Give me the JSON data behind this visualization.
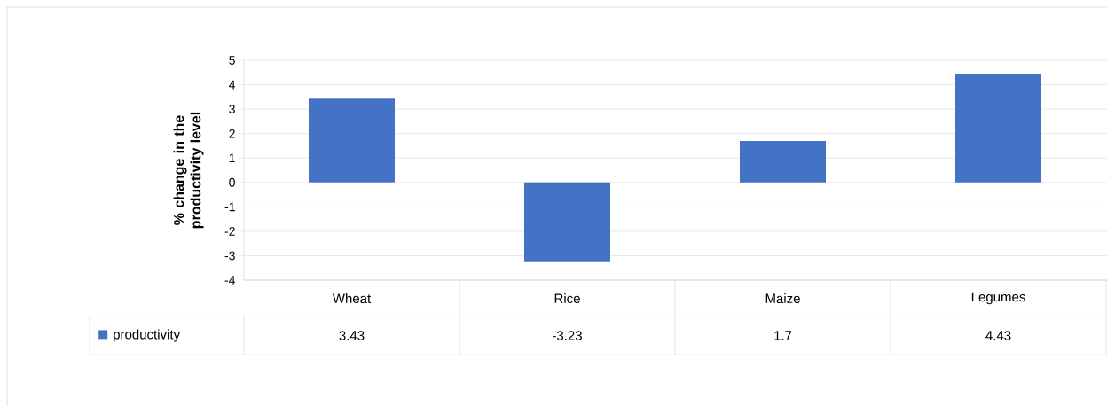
{
  "chart_data": {
    "type": "bar",
    "ylabel": "% change in the productivity level",
    "categories": [
      "Wheat",
      "Rice",
      "Maize",
      "Legumes"
    ],
    "series": [
      {
        "name": "productivity",
        "color": "#4472c4",
        "values": [
          3.43,
          -3.23,
          1.7,
          4.43
        ]
      }
    ],
    "ylim": [
      -4,
      5
    ],
    "yticks": [
      -4,
      -3,
      -2,
      -1,
      0,
      1,
      2,
      3,
      4,
      5
    ],
    "grid": "y",
    "legend": "bottom left",
    "data_labels": true
  }
}
